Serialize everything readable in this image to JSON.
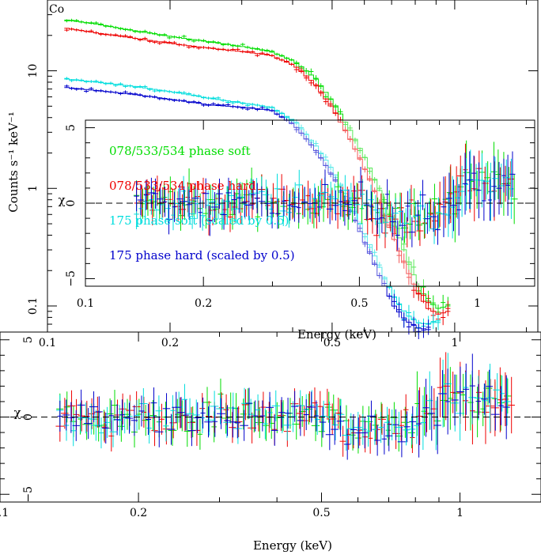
{
  "chart_data": [
    {
      "type": "scatter",
      "name": "spectrum-main",
      "xlabel": "Energy (keV)",
      "ylabel": "Counts s⁻¹ keV⁻¹",
      "xscale": "log",
      "yscale": "log",
      "xlim": [
        0.1,
        1.6
      ],
      "ylim": [
        0.06,
        40
      ],
      "xticks": [
        {
          "v": 0.1,
          "t": "0.1"
        },
        {
          "v": 0.2,
          "t": "0.2"
        },
        {
          "v": 0.5,
          "t": "0.5"
        },
        {
          "v": 1,
          "t": "1"
        }
      ],
      "yticks": [
        {
          "v": 0.1,
          "t": "0.1"
        },
        {
          "v": 1,
          "t": "1"
        },
        {
          "v": 10,
          "t": "10"
        }
      ],
      "series": [
        {
          "name": "078/533/534 phase soft",
          "color": "#00dd00",
          "points": [
            [
              0.11,
              27
            ],
            [
              0.13,
              25
            ],
            [
              0.16,
              22
            ],
            [
              0.2,
              19.5
            ],
            [
              0.25,
              17.5
            ],
            [
              0.3,
              16
            ],
            [
              0.35,
              14.5
            ],
            [
              0.4,
              12
            ],
            [
              0.45,
              8.5
            ],
            [
              0.5,
              5.2
            ],
            [
              0.55,
              3
            ],
            [
              0.6,
              1.7
            ],
            [
              0.65,
              0.9
            ],
            [
              0.7,
              0.48
            ],
            [
              0.75,
              0.27
            ],
            [
              0.8,
              0.15
            ],
            [
              0.85,
              0.11
            ],
            [
              0.9,
              0.095
            ],
            [
              0.95,
              0.1
            ]
          ]
        },
        {
          "name": "078/533/534 phase hard",
          "color": "#ee0000",
          "points": [
            [
              0.11,
              23
            ],
            [
              0.13,
              21
            ],
            [
              0.16,
              19
            ],
            [
              0.2,
              17
            ],
            [
              0.25,
              15.5
            ],
            [
              0.3,
              14.5
            ],
            [
              0.35,
              13.5
            ],
            [
              0.4,
              11
            ],
            [
              0.45,
              7.6
            ],
            [
              0.5,
              4.5
            ],
            [
              0.55,
              2.5
            ],
            [
              0.6,
              1.35
            ],
            [
              0.65,
              0.7
            ],
            [
              0.7,
              0.37
            ],
            [
              0.75,
              0.21
            ],
            [
              0.8,
              0.13
            ],
            [
              0.85,
              0.095
            ],
            [
              0.9,
              0.085
            ],
            [
              0.95,
              0.09
            ]
          ]
        },
        {
          "name": "175 phase soft (scaled by 0.5)",
          "color": "#00dddd",
          "points": [
            [
              0.11,
              8.5
            ],
            [
              0.13,
              8
            ],
            [
              0.16,
              7.4
            ],
            [
              0.2,
              6.6
            ],
            [
              0.25,
              5.8
            ],
            [
              0.3,
              5.3
            ],
            [
              0.35,
              4.9
            ],
            [
              0.4,
              3.7
            ],
            [
              0.45,
              2.3
            ],
            [
              0.5,
              1.35
            ],
            [
              0.55,
              0.72
            ],
            [
              0.6,
              0.38
            ],
            [
              0.65,
              0.2
            ],
            [
              0.7,
              0.12
            ],
            [
              0.75,
              0.085
            ],
            [
              0.8,
              0.072
            ],
            [
              0.85,
              0.07
            ],
            [
              0.9,
              0.075
            ]
          ]
        },
        {
          "name": "175 phase hard (scaled by 0.5)",
          "color": "#0000cc",
          "points": [
            [
              0.11,
              7.2
            ],
            [
              0.13,
              6.8
            ],
            [
              0.16,
              6.3
            ],
            [
              0.2,
              5.7
            ],
            [
              0.25,
              5.1
            ],
            [
              0.3,
              4.9
            ],
            [
              0.35,
              4.6
            ],
            [
              0.4,
              3.4
            ],
            [
              0.45,
              2.1
            ],
            [
              0.5,
              1.2
            ],
            [
              0.55,
              0.62
            ],
            [
              0.6,
              0.32
            ],
            [
              0.65,
              0.17
            ],
            [
              0.7,
              0.1
            ],
            [
              0.75,
              0.075
            ],
            [
              0.8,
              0.065
            ],
            [
              0.85,
              0.063
            ]
          ]
        }
      ]
    },
    {
      "type": "scatter",
      "name": "residuals-inset",
      "ylabel": "χ",
      "xlabel": "Energy (keV)",
      "xscale": "log",
      "xlim": [
        0.1,
        1.4
      ],
      "ylim": [
        -5.5,
        5.5
      ],
      "xticks": [
        {
          "v": 0.1,
          "t": "0.1"
        },
        {
          "v": 0.2,
          "t": "0.2"
        },
        {
          "v": 0.5,
          "t": "0.5"
        },
        {
          "v": 1,
          "t": "1"
        }
      ],
      "yticks": [
        {
          "v": 5,
          "t": "5"
        },
        {
          "v": 0,
          "t": "0"
        },
        {
          "v": -5,
          "t": "−5"
        }
      ],
      "legend_position": "upper-left",
      "chi_range": [
        -3,
        3
      ]
    },
    {
      "type": "scatter",
      "name": "residuals-bottom",
      "ylabel": "χ",
      "xlabel": "Energy (keV)",
      "xscale": "log",
      "xlim": [
        0.1,
        1.5
      ],
      "ylim": [
        -5.5,
        5.5
      ],
      "xticks": [
        {
          "v": 0.1,
          "t": "0.1"
        },
        {
          "v": 0.2,
          "t": "0.2"
        },
        {
          "v": 0.5,
          "t": "0.5"
        },
        {
          "v": 1,
          "t": "1"
        }
      ],
      "yticks": [
        {
          "v": 5,
          "t": "5"
        },
        {
          "v": 0,
          "t": "0"
        },
        {
          "v": -5,
          "t": "−5"
        }
      ],
      "chi_range": [
        -3.5,
        3.5
      ]
    }
  ],
  "main_title_fragment": "Co"
}
